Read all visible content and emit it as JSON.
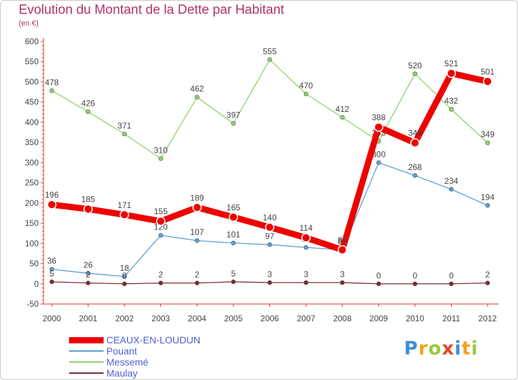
{
  "header": {
    "title": "Evolution du Montant de la Dette par Habitant",
    "subtitle": "(en €)"
  },
  "brand": {
    "letters": [
      "P",
      "r",
      "o",
      "x",
      "i",
      "t",
      "i"
    ],
    "colors": [
      "#3a8fd8",
      "#f2a51a",
      "#9bc93a",
      "#e8432e",
      "#3a8fd8",
      "#f2a51a",
      "#9bc93a"
    ]
  },
  "chart_data": {
    "type": "line",
    "x": [
      "2000",
      "2001",
      "2002",
      "2003",
      "2004",
      "2005",
      "2006",
      "2007",
      "2008",
      "2009",
      "2010",
      "2011",
      "2012"
    ],
    "y_ticks": [
      "-50",
      "0",
      "50",
      "100",
      "150",
      "200",
      "250",
      "300",
      "350",
      "400",
      "450",
      "500",
      "550",
      "600"
    ],
    "ylim": [
      -50,
      600
    ],
    "grid": "none",
    "legend_position": "bottom-left",
    "series": [
      {
        "name": "CEAUX-EN-LOUDUN",
        "color": "#ee0000",
        "emphasis": true,
        "values": [
          196,
          185,
          171,
          155,
          189,
          165,
          140,
          114,
          84,
          388,
          349,
          521,
          501
        ],
        "labels": [
          "196",
          "185",
          "171",
          "155",
          "189",
          "165",
          "140",
          "114",
          "84",
          "388",
          "349",
          "521",
          "501"
        ]
      },
      {
        "name": "Pouant",
        "color": "#5b9fd6",
        "emphasis": false,
        "values": [
          36,
          26,
          18,
          120,
          107,
          101,
          97,
          90,
          84,
          300,
          268,
          234,
          194
        ],
        "labels": [
          "36",
          "26",
          "18",
          "120",
          "107",
          "101",
          "97",
          "90",
          "84",
          "300",
          "268",
          "234",
          "194"
        ]
      },
      {
        "name": "Messemé",
        "color": "#8fd16a",
        "emphasis": false,
        "values": [
          478,
          426,
          371,
          310,
          462,
          397,
          555,
          470,
          412,
          353,
          520,
          432,
          349
        ],
        "labels": [
          "478",
          "426",
          "371",
          "310",
          "462",
          "397",
          "555",
          "470",
          "412",
          "353",
          "520",
          "432",
          "349"
        ]
      },
      {
        "name": "Maulay",
        "color": "#7a2a35",
        "emphasis": false,
        "values": [
          5,
          2,
          0,
          2,
          2,
          5,
          3,
          3,
          3,
          0,
          0,
          0,
          2
        ],
        "labels": [
          "5",
          "2",
          "0",
          "2",
          "2",
          "5",
          "3",
          "3",
          "3",
          "0",
          "0",
          "0",
          "2"
        ]
      }
    ]
  }
}
